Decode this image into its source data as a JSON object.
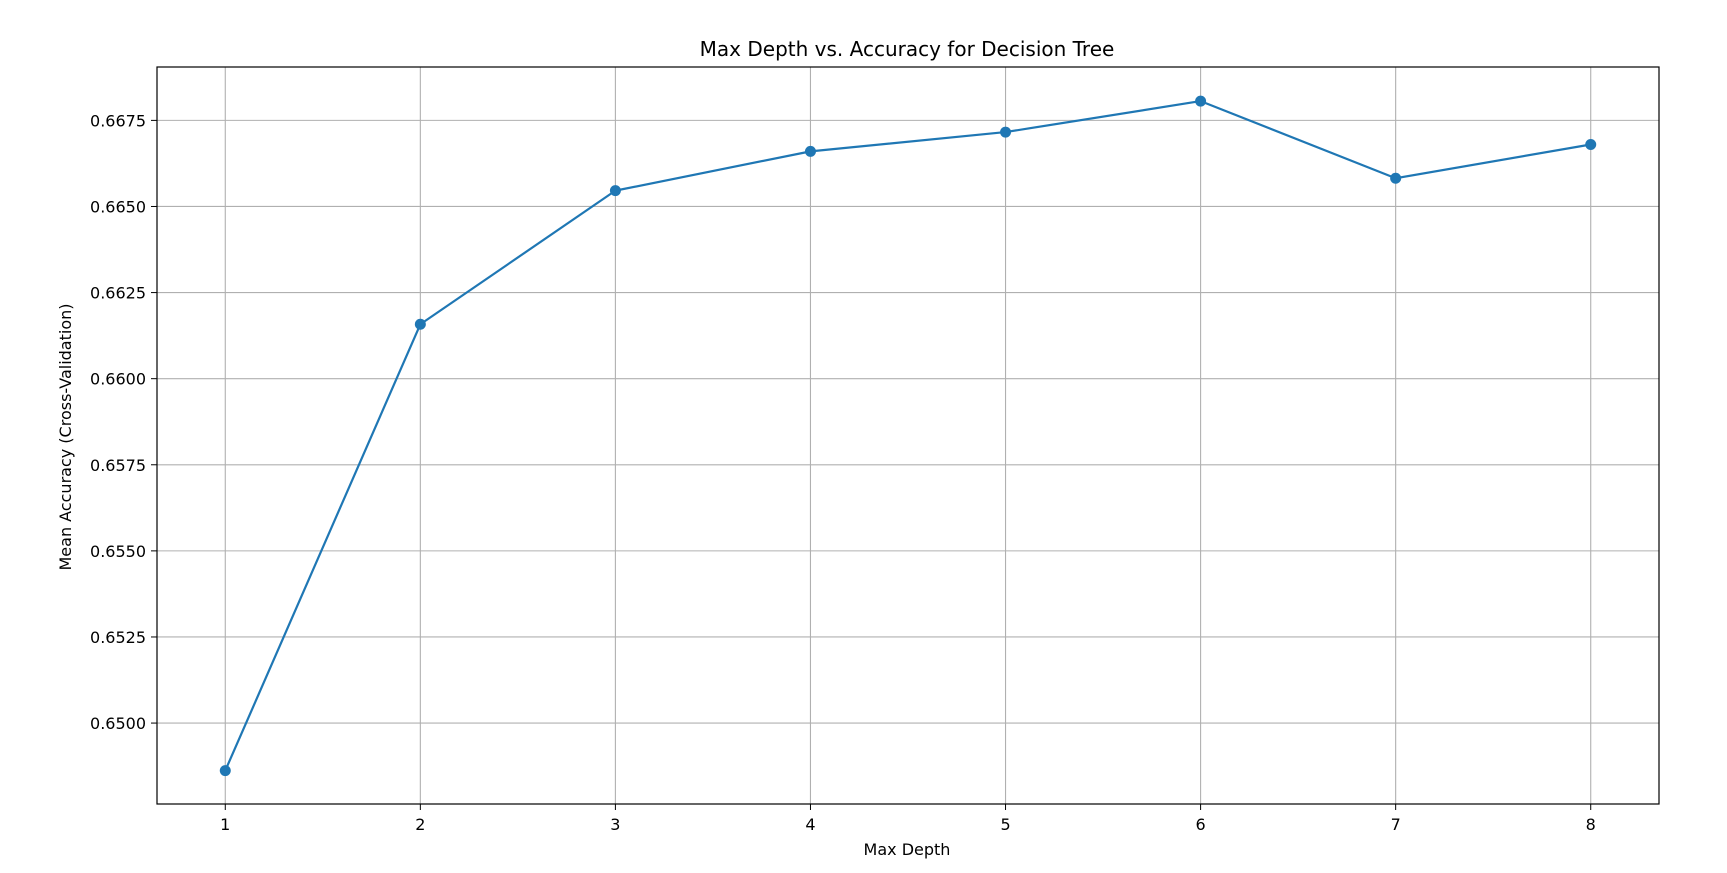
{
  "chart_data": {
    "type": "line",
    "title": "Max Depth vs. Accuracy for Decision Tree",
    "xlabel": "Max Depth",
    "ylabel": "Mean Accuracy (Cross-Validation)",
    "x": [
      1,
      2,
      3,
      4,
      5,
      6,
      7,
      8
    ],
    "x_tick_labels": [
      "1",
      "2",
      "3",
      "4",
      "5",
      "6",
      "7",
      "8"
    ],
    "y_ticks": [
      0.65,
      0.6525,
      0.655,
      0.6575,
      0.66,
      0.6625,
      0.665,
      0.6675
    ],
    "y_tick_labels": [
      "0.6500",
      "0.6525",
      "0.6550",
      "0.6575",
      "0.6600",
      "0.6625",
      "0.6650",
      "0.6675"
    ],
    "xlim": [
      0.65,
      8.35
    ],
    "ylim": [
      0.64765,
      0.66905
    ],
    "grid": true,
    "series": [
      {
        "values": [
          0.64862,
          0.66158,
          0.66546,
          0.6666,
          0.66716,
          0.66806,
          0.66582,
          0.6668
        ],
        "color": "#1f77b4",
        "marker": "circle"
      }
    ]
  }
}
